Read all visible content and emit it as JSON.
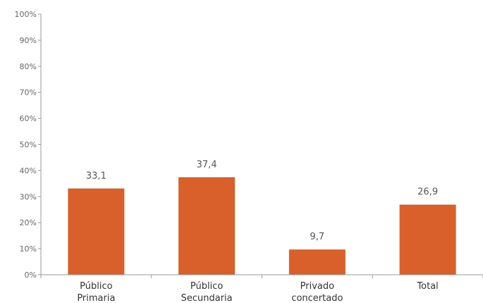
{
  "chart_data": {
    "type": "bar",
    "categories": [
      [
        "Público",
        "Primaria"
      ],
      [
        "Público",
        "Secundaria"
      ],
      [
        "Privado",
        "concertado"
      ],
      [
        "Total"
      ]
    ],
    "values": [
      33.1,
      37.4,
      9.7,
      26.9
    ],
    "data_labels": [
      "33,1",
      "37,4",
      "9,7",
      "26,9"
    ],
    "title": "",
    "xlabel": "",
    "ylabel": "",
    "ylim": [
      0,
      100
    ],
    "yticks": [
      0,
      10,
      20,
      30,
      40,
      50,
      60,
      70,
      80,
      90,
      100
    ],
    "ytick_labels": [
      "0%",
      "10%",
      "20%",
      "30%",
      "40%",
      "50%",
      "60%",
      "70%",
      "80%",
      "90%",
      "100%"
    ],
    "grid": false,
    "legend": "none",
    "colors": {
      "bar": "#D95F2B",
      "axis": "#999999"
    }
  }
}
